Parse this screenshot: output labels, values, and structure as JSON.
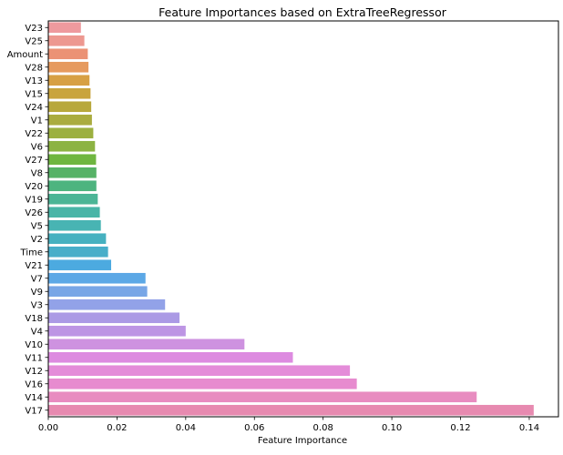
{
  "chart_data": {
    "type": "bar",
    "orientation": "horizontal",
    "title": "Feature Importances based on ExtraTreeRegressor",
    "xlabel": "Feature Importance",
    "ylabel": "",
    "xlim": [
      0,
      0.1485
    ],
    "xticks": [
      0.0,
      0.02,
      0.04,
      0.06,
      0.08,
      0.1,
      0.12,
      0.14
    ],
    "xtick_labels": [
      "0.00",
      "0.02",
      "0.04",
      "0.06",
      "0.08",
      "0.10",
      "0.12",
      "0.14"
    ],
    "grid": false,
    "categories": [
      "V23",
      "V25",
      "Amount",
      "V28",
      "V13",
      "V15",
      "V24",
      "V1",
      "V22",
      "V6",
      "V27",
      "V8",
      "V20",
      "V19",
      "V26",
      "V5",
      "V2",
      "Time",
      "V21",
      "V7",
      "V9",
      "V3",
      "V18",
      "V4",
      "V10",
      "V11",
      "V12",
      "V16",
      "V14",
      "V17"
    ],
    "values": [
      0.0095,
      0.0105,
      0.0115,
      0.0117,
      0.012,
      0.0123,
      0.0125,
      0.0127,
      0.0131,
      0.0136,
      0.0139,
      0.014,
      0.014,
      0.0144,
      0.015,
      0.0153,
      0.0168,
      0.0174,
      0.0183,
      0.0283,
      0.0288,
      0.034,
      0.0382,
      0.04,
      0.0571,
      0.0712,
      0.0878,
      0.0898,
      0.1247,
      0.1413
    ],
    "colors": [
      "#ee9a9e",
      "#ed9890",
      "#eb9275",
      "#e69a5e",
      "#d7a044",
      "#c9a43d",
      "#b8a83c",
      "#aaac3f",
      "#9cb040",
      "#8cb342",
      "#6fb640",
      "#56b266",
      "#4db47f",
      "#4bb596",
      "#49b5a7",
      "#48b4b3",
      "#46b1c0",
      "#48aec9",
      "#4caae0",
      "#5ca8e6",
      "#78a6e6",
      "#92a2e8",
      "#ab9ae5",
      "#bd95e4",
      "#ce92e0",
      "#dd8be0",
      "#e48cd9",
      "#e78bcf",
      "#e88cc0",
      "#e78ab0"
    ]
  }
}
